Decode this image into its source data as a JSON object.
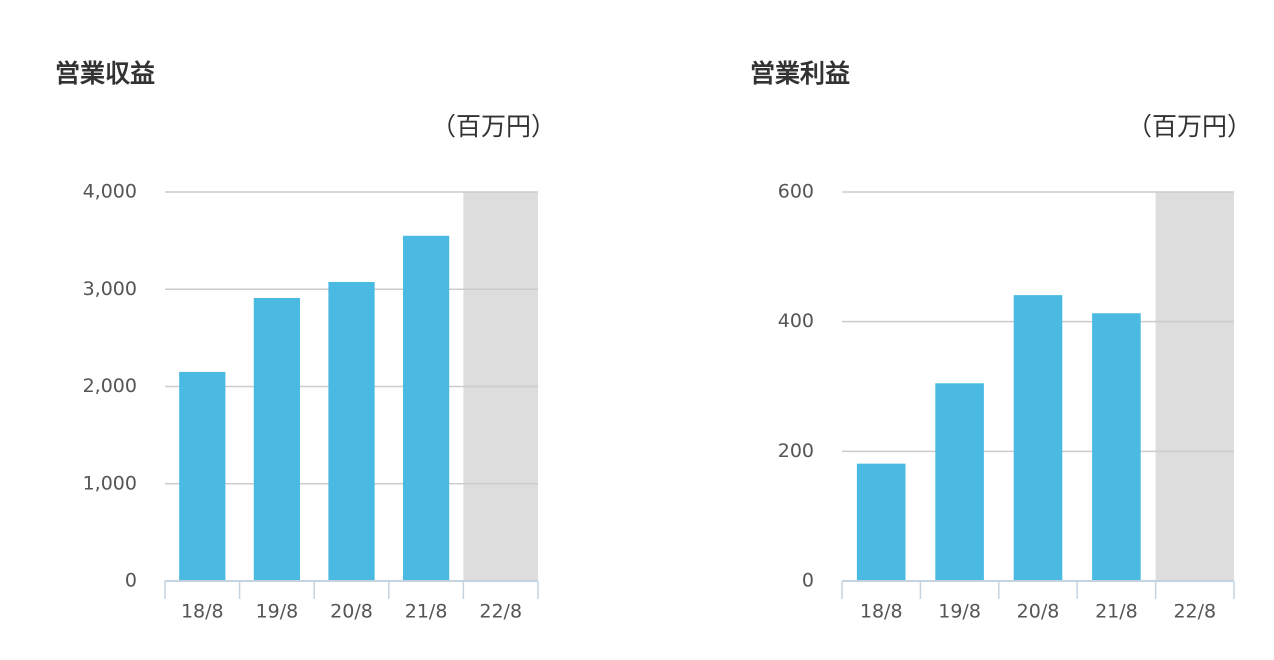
{
  "chart_data": [
    {
      "type": "bar",
      "title": "営業収益",
      "unit": "（百万円）",
      "categories": [
        "18/8",
        "19/8",
        "20/8",
        "21/8",
        "22/8"
      ],
      "values": [
        2150,
        2910,
        3075,
        3550,
        null
      ],
      "color": "#4bbae3",
      "highlight_index": 4,
      "highlight_color": "#dddddd",
      "ylim": [
        0,
        4000
      ],
      "yticks": [
        0,
        {
          "value": 1000,
          "label": "1,000"
        },
        {
          "value": 2000,
          "label": "2,000"
        },
        {
          "value": 3000,
          "label": "3,000"
        },
        {
          "value": 4000,
          "label": "4,000"
        }
      ],
      "grid": true
    },
    {
      "type": "bar",
      "title": "営業利益",
      "unit": "（百万円）",
      "categories": [
        "18/8",
        "19/8",
        "20/8",
        "21/8",
        "22/8"
      ],
      "values": [
        181,
        305,
        441,
        413,
        null
      ],
      "color": "#4bbae3",
      "highlight_index": 4,
      "highlight_color": "#dddddd",
      "ylim": [
        0,
        600
      ],
      "yticks": [
        0,
        200,
        400,
        600
      ],
      "grid": true
    }
  ]
}
